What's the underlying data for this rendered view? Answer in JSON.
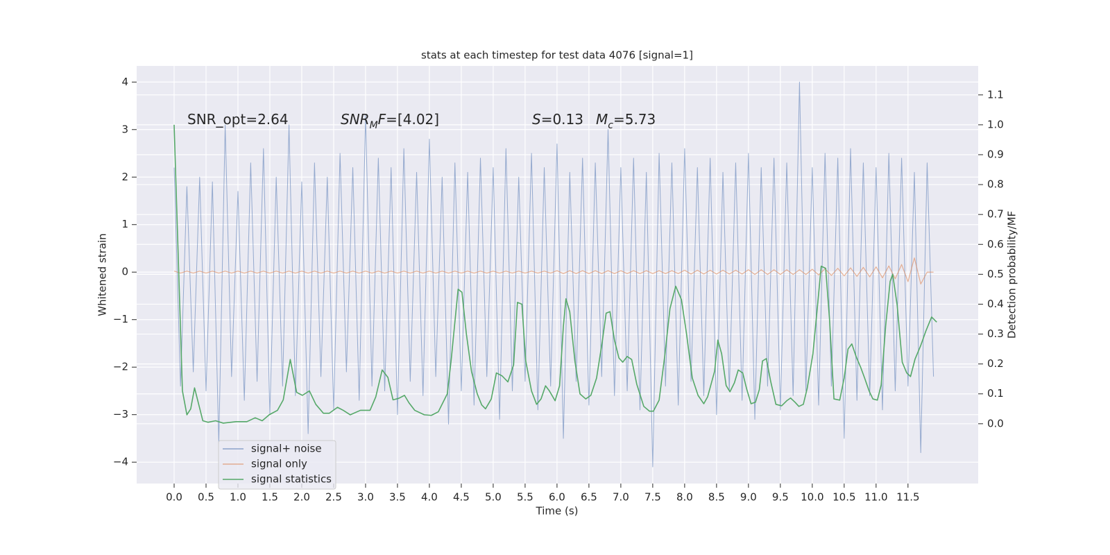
{
  "chart_data": {
    "type": "line",
    "title": "stats at each timestep for test data 4076 [signal=1]",
    "xlabel": "Time (s)",
    "ylabel": "Whitened strain",
    "y2label": "Detection probability/MF",
    "annotations": [
      [
        "SNR_opt=2.64"
      ],
      [
        "SNR",
        "M",
        "F",
        "=[4.02]"
      ],
      [
        "S",
        "=0.13"
      ],
      [
        "M",
        "c",
        "=5.73"
      ]
    ],
    "xlim": [
      -0.587,
      12.6
    ],
    "ylim": [
      -4.45,
      4.34
    ],
    "y2lim": [
      -0.2,
      1.197
    ],
    "xticks": [
      {
        "value": 0,
        "label": "0.0"
      },
      0.5,
      {
        "value": 1,
        "label": "1.0"
      },
      1.5,
      {
        "value": 2,
        "label": "2.0"
      },
      2.5,
      {
        "value": 3,
        "label": "3.0"
      },
      3.5,
      {
        "value": 4,
        "label": "4.0"
      },
      4.5,
      {
        "value": 5,
        "label": "5.0"
      },
      5.5,
      {
        "value": 6,
        "label": "6.0"
      },
      6.5,
      {
        "value": 7,
        "label": "7.0"
      },
      7.5,
      {
        "value": 8,
        "label": "8.0"
      },
      8.5,
      {
        "value": 9,
        "label": "9.0"
      },
      9.5,
      {
        "value": 10,
        "label": "10.0"
      },
      10.5,
      {
        "value": 11,
        "label": "11.0"
      },
      11.5
    ],
    "yticks": [
      {
        "value": -4,
        "label": "−4"
      },
      {
        "value": -3,
        "label": "−3"
      },
      {
        "value": -2,
        "label": "−2"
      },
      {
        "value": -1,
        "label": "−1"
      },
      0,
      1,
      2,
      3,
      4
    ],
    "y2ticks": [
      {
        "value": 0,
        "label": "0.0"
      },
      0.1,
      0.2,
      0.3,
      0.4,
      0.5,
      0.6,
      0.7,
      0.8,
      0.9,
      {
        "value": 1,
        "label": "1.0"
      },
      1.1
    ],
    "grid": true,
    "legend": "lower left",
    "x": [
      0,
      0.1,
      0.2,
      0.3,
      0.4,
      0.5,
      0.6,
      0.7,
      0.8,
      0.9,
      1,
      1.1,
      1.2,
      1.3,
      1.4,
      1.5,
      1.6,
      1.7,
      1.8,
      1.9,
      2,
      2.1,
      2.2,
      2.3,
      2.4,
      2.5,
      2.6,
      2.7,
      2.8,
      2.9,
      3,
      3.1,
      3.2,
      3.3,
      3.4,
      3.5,
      3.6,
      3.7,
      3.8,
      3.9,
      4,
      4.1,
      4.2,
      4.3,
      4.4,
      4.5,
      4.6,
      4.7,
      4.8,
      4.9,
      5,
      5.1,
      5.2,
      5.3,
      5.4,
      5.5,
      5.6,
      5.7,
      5.8,
      5.9,
      6,
      6.1,
      6.2,
      6.3,
      6.4,
      6.5,
      6.6,
      6.7,
      6.8,
      6.9,
      7,
      7.1,
      7.2,
      7.3,
      7.4,
      7.5,
      7.6,
      7.7,
      7.8,
      7.9,
      8,
      8.1,
      8.2,
      8.3,
      8.4,
      8.5,
      8.6,
      8.7,
      8.8,
      8.9,
      9,
      9.1,
      9.2,
      9.3,
      9.4,
      9.5,
      9.6,
      9.7,
      9.8,
      9.9,
      10,
      10.1,
      10.2,
      10.3,
      10.4,
      10.5,
      10.6,
      10.7,
      10.8,
      10.9,
      11,
      11.1,
      11.2,
      11.3,
      11.4,
      11.5,
      11.6,
      11.7,
      11.8,
      11.9
    ],
    "series": [
      {
        "name": "signal+ noise",
        "color": "#4c72b0",
        "values": [
          2.2,
          -2.4,
          1.8,
          -2.1,
          2.0,
          -2.5,
          1.9,
          -3.6,
          3.1,
          -2.2,
          1.7,
          -2.7,
          2.3,
          -2.3,
          2.6,
          -3.0,
          2.0,
          -2.4,
          3.1,
          -2.6,
          1.9,
          -3.4,
          2.3,
          -2.2,
          2.0,
          -2.9,
          2.5,
          -2.1,
          2.2,
          -2.7,
          3.3,
          -2.4,
          2.4,
          -2.5,
          2.2,
          -3.0,
          2.6,
          -2.3,
          2.1,
          -2.6,
          2.8,
          -2.2,
          2.0,
          -3.2,
          2.3,
          -2.5,
          2.1,
          -2.8,
          2.4,
          -2.2,
          2.2,
          -3.1,
          2.6,
          -2.5,
          2.0,
          -2.3,
          2.5,
          -2.9,
          2.2,
          -2.4,
          2.7,
          -3.5,
          2.1,
          -2.3,
          2.4,
          -2.8,
          2.3,
          -2.2,
          3.0,
          -2.6,
          2.2,
          -2.5,
          2.4,
          -2.9,
          2.1,
          -4.1,
          2.5,
          -2.4,
          2.3,
          -2.8,
          2.6,
          -2.3,
          2.2,
          -2.6,
          2.4,
          -3.0,
          2.1,
          -2.5,
          2.3,
          -2.7,
          2.5,
          -3.1,
          2.2,
          -2.4,
          2.4,
          -2.9,
          2.3,
          -2.6,
          4.0,
          -2.5,
          2.2,
          -2.8,
          2.5,
          -2.4,
          2.4,
          -3.5,
          2.6,
          -2.7,
          2.3,
          -2.6,
          2.2,
          -2.9,
          2.5,
          -2.5,
          2.4,
          -2.4,
          2.1,
          -3.8,
          2.3,
          -2.2
        ]
      },
      {
        "name": "signal only",
        "color": "#dd8452",
        "values": [
          0.02,
          -0.02,
          0.02,
          -0.02,
          0.02,
          -0.02,
          0.02,
          -0.02,
          0.02,
          -0.02,
          0.02,
          -0.02,
          0.02,
          -0.02,
          0.02,
          -0.02,
          0.02,
          -0.02,
          0.02,
          -0.02,
          0.02,
          -0.02,
          0.02,
          -0.02,
          0.02,
          -0.02,
          0.02,
          -0.02,
          0.02,
          -0.02,
          0.02,
          -0.02,
          0.02,
          -0.02,
          0.02,
          -0.02,
          0.02,
          -0.02,
          0.02,
          -0.02,
          0.02,
          -0.02,
          0.02,
          -0.02,
          0.02,
          -0.02,
          0.02,
          -0.02,
          0.02,
          -0.02,
          0.02,
          -0.02,
          0.02,
          -0.02,
          0.02,
          -0.02,
          0.02,
          -0.02,
          0.02,
          -0.02,
          0.03,
          -0.03,
          0.03,
          -0.03,
          0.03,
          -0.03,
          0.03,
          -0.03,
          0.03,
          -0.03,
          0.03,
          -0.03,
          0.03,
          -0.03,
          0.03,
          -0.03,
          0.03,
          -0.03,
          0.03,
          -0.03,
          0.04,
          -0.04,
          0.04,
          -0.04,
          0.04,
          -0.04,
          0.04,
          -0.04,
          0.04,
          -0.04,
          0.05,
          -0.05,
          0.05,
          -0.05,
          0.05,
          -0.05,
          0.05,
          -0.05,
          0.05,
          -0.05,
          0.06,
          -0.06,
          0.07,
          -0.07,
          0.08,
          -0.08,
          0.09,
          -0.09,
          0.1,
          -0.1,
          0.11,
          -0.12,
          0.13,
          -0.14,
          0.16,
          -0.2,
          0.3,
          -0.25,
          0,
          0
        ]
      },
      {
        "name": "signal statistics",
        "color": "#55a868",
        "axis": "y2",
        "x": [
          0,
          0.13,
          0.2,
          0.26,
          0.32,
          0.45,
          0.53,
          0.65,
          0.77,
          0.97,
          1.14,
          1.27,
          1.38,
          1.49,
          1.62,
          1.71,
          1.82,
          1.92,
          2.01,
          2.12,
          2.22,
          2.34,
          2.43,
          2.56,
          2.65,
          2.76,
          2.92,
          3.07,
          3.16,
          3.26,
          3.35,
          3.43,
          3.52,
          3.61,
          3.68,
          3.77,
          3.92,
          4.03,
          4.14,
          4.28,
          4.34,
          4.45,
          4.51,
          4.58,
          4.66,
          4.75,
          4.82,
          4.88,
          4.97,
          5.05,
          5.14,
          5.23,
          5.32,
          5.38,
          5.45,
          5.51,
          5.6,
          5.68,
          5.75,
          5.82,
          5.88,
          5.97,
          6.04,
          6.1,
          6.14,
          6.2,
          6.28,
          6.36,
          6.45,
          6.53,
          6.62,
          6.71,
          6.77,
          6.83,
          6.9,
          6.97,
          7.03,
          7.1,
          7.17,
          7.25,
          7.36,
          7.45,
          7.51,
          7.6,
          7.69,
          7.77,
          7.86,
          7.95,
          8.03,
          8.12,
          8.21,
          8.3,
          8.36,
          8.47,
          8.52,
          8.58,
          8.65,
          8.71,
          8.78,
          8.84,
          8.91,
          8.97,
          9.04,
          9.11,
          9.17,
          9.22,
          9.28,
          9.35,
          9.43,
          9.52,
          9.6,
          9.66,
          9.73,
          9.79,
          9.86,
          9.92,
          10.01,
          10.08,
          10.14,
          10.21,
          10.27,
          10.34,
          10.43,
          10.5,
          10.56,
          10.62,
          10.69,
          10.76,
          10.82,
          10.89,
          10.95,
          11.02,
          11.08,
          11.15,
          11.22,
          11.26,
          11.33,
          11.41,
          11.48,
          11.54,
          11.61,
          11.7,
          11.78,
          11.87,
          11.95
        ],
        "values": [
          1.0,
          0.11,
          0.03,
          0.05,
          0.12,
          0.01,
          0.005,
          0.01,
          0.002,
          0.007,
          0.007,
          0.02,
          0.01,
          0.03,
          0.045,
          0.08,
          0.215,
          0.105,
          0.095,
          0.11,
          0.065,
          0.035,
          0.035,
          0.055,
          0.045,
          0.03,
          0.045,
          0.045,
          0.09,
          0.18,
          0.155,
          0.08,
          0.085,
          0.095,
          0.07,
          0.045,
          0.03,
          0.028,
          0.04,
          0.1,
          0.21,
          0.45,
          0.44,
          0.3,
          0.175,
          0.1,
          0.063,
          0.05,
          0.083,
          0.17,
          0.16,
          0.14,
          0.197,
          0.406,
          0.4,
          0.21,
          0.11,
          0.065,
          0.083,
          0.127,
          0.11,
          0.077,
          0.127,
          0.327,
          0.418,
          0.374,
          0.21,
          0.1,
          0.083,
          0.095,
          0.153,
          0.276,
          0.37,
          0.375,
          0.28,
          0.22,
          0.206,
          0.225,
          0.215,
          0.132,
          0.058,
          0.042,
          0.042,
          0.079,
          0.23,
          0.385,
          0.46,
          0.415,
          0.3,
          0.153,
          0.095,
          0.067,
          0.09,
          0.176,
          0.28,
          0.234,
          0.128,
          0.107,
          0.137,
          0.18,
          0.17,
          0.118,
          0.067,
          0.072,
          0.114,
          0.21,
          0.218,
          0.14,
          0.065,
          0.06,
          0.077,
          0.086,
          0.072,
          0.058,
          0.065,
          0.118,
          0.234,
          0.39,
          0.527,
          0.52,
          0.35,
          0.083,
          0.079,
          0.153,
          0.25,
          0.267,
          0.223,
          0.188,
          0.153,
          0.11,
          0.083,
          0.079,
          0.13,
          0.327,
          0.476,
          0.5,
          0.397,
          0.206,
          0.17,
          0.158,
          0.216,
          0.262,
          0.31,
          0.357,
          0.34
        ]
      }
    ]
  }
}
